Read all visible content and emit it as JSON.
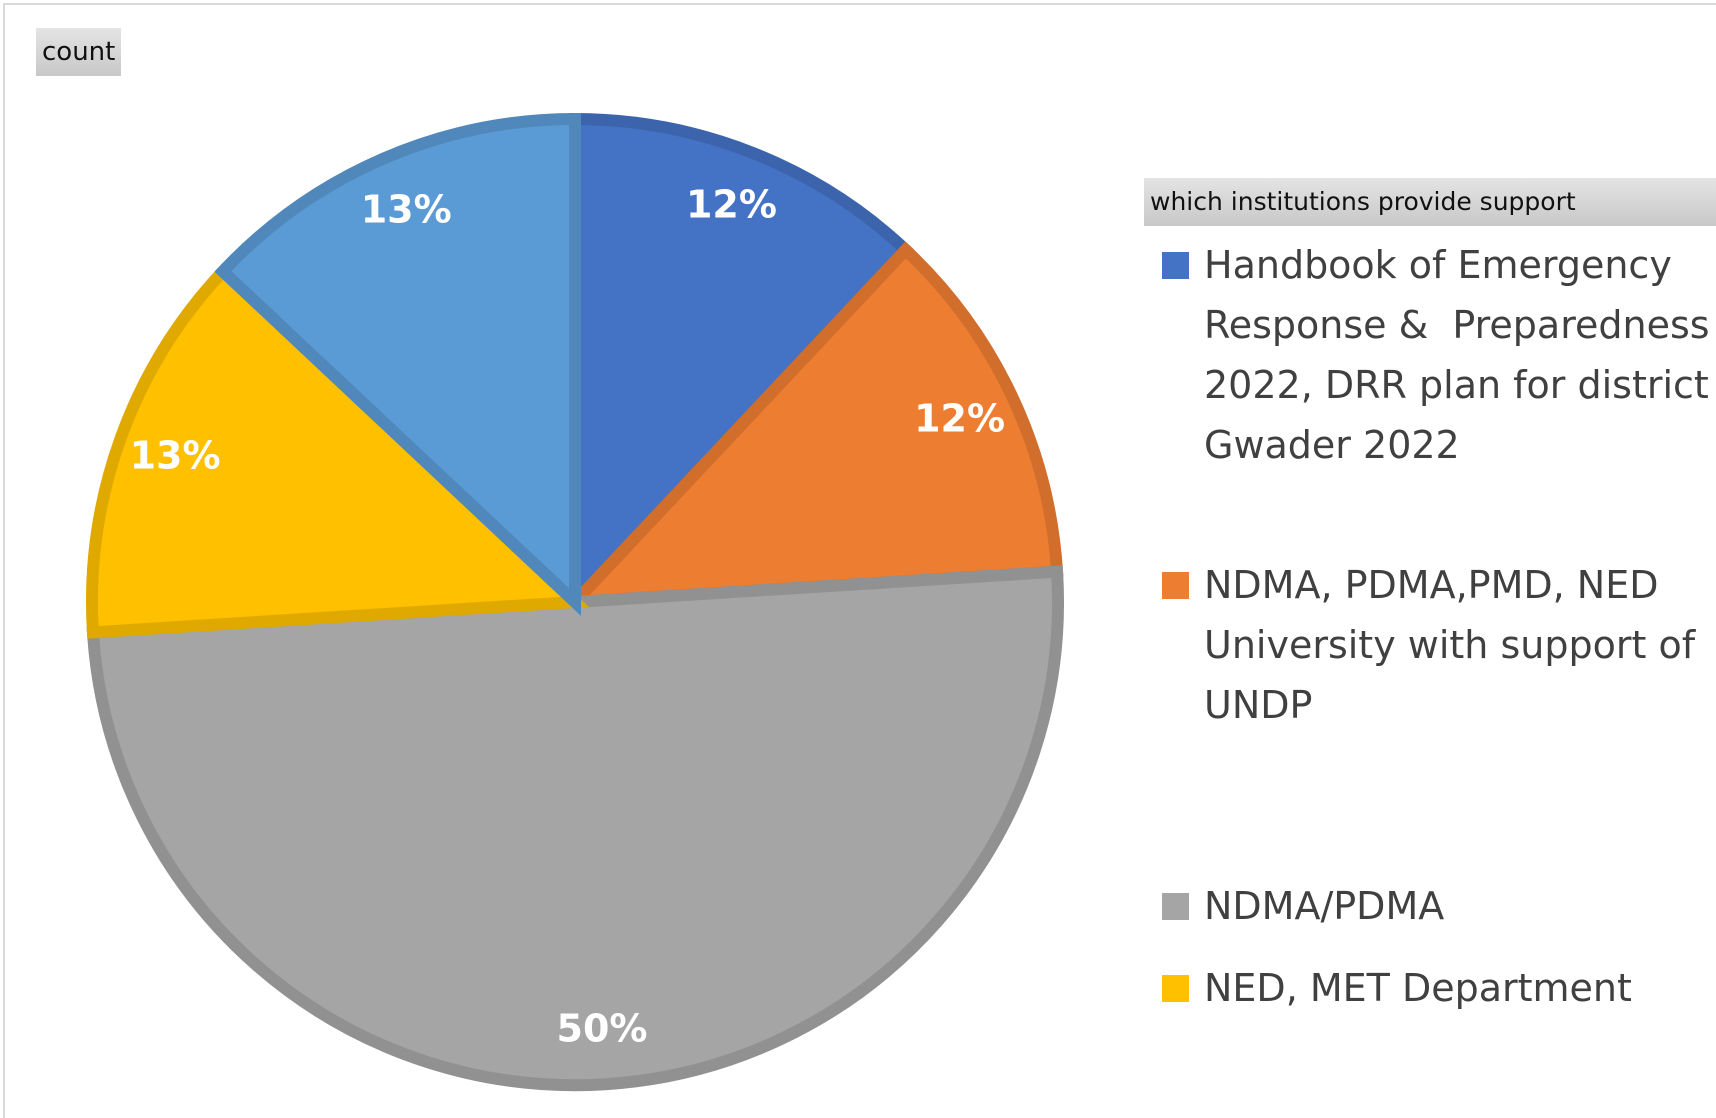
{
  "chart_data": {
    "type": "pie",
    "field_button": "count",
    "legend_title": "which institutions provide support",
    "categories": [
      "Handbook of Emergency Response &  Preparedness  2022, DRR plan for district Gwader 2022",
      "NDMA, PDMA,PMD, NED University with support of UNDP",
      "NDMA/PDMA",
      "NED, MET Department",
      null
    ],
    "values": [
      12,
      12,
      50,
      13,
      13
    ],
    "value_labels": [
      "12%",
      "12%",
      "50%",
      "13%",
      "13%"
    ],
    "colors": [
      "#4472c4",
      "#ed7d31",
      "#a5a5a5",
      "#ffc000",
      "#5b9bd5"
    ],
    "legend": "right"
  }
}
